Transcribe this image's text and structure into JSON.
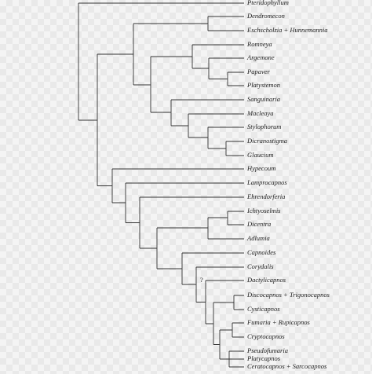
{
  "taxa": [
    "Pteridophyllum",
    "Dendromecon",
    "Eschscholzia + Hunnemannia",
    "Romneya",
    "Argemone",
    "Papaver",
    "Platystemon",
    "Sanguinaria",
    "Macleaya",
    "Stylophorum",
    "Dicranostigma",
    "Glaucium",
    "Hypecoum",
    "Lamprocapnos",
    "Ehrendorferia",
    "Ichtyoselmis",
    "Dicentra",
    "Adlumia",
    "Capnoides",
    "Corydalis",
    "Dactylicapnos",
    "Discocapnos + Trigonocapnos",
    "Cysticapnos",
    "Fumaria + Rupicapnos",
    "Cryptocapnos",
    "Pseudofumaria",
    "Platycapnos",
    "Ceratocapnos + Sarcocapnos"
  ],
  "annotation": "?"
}
